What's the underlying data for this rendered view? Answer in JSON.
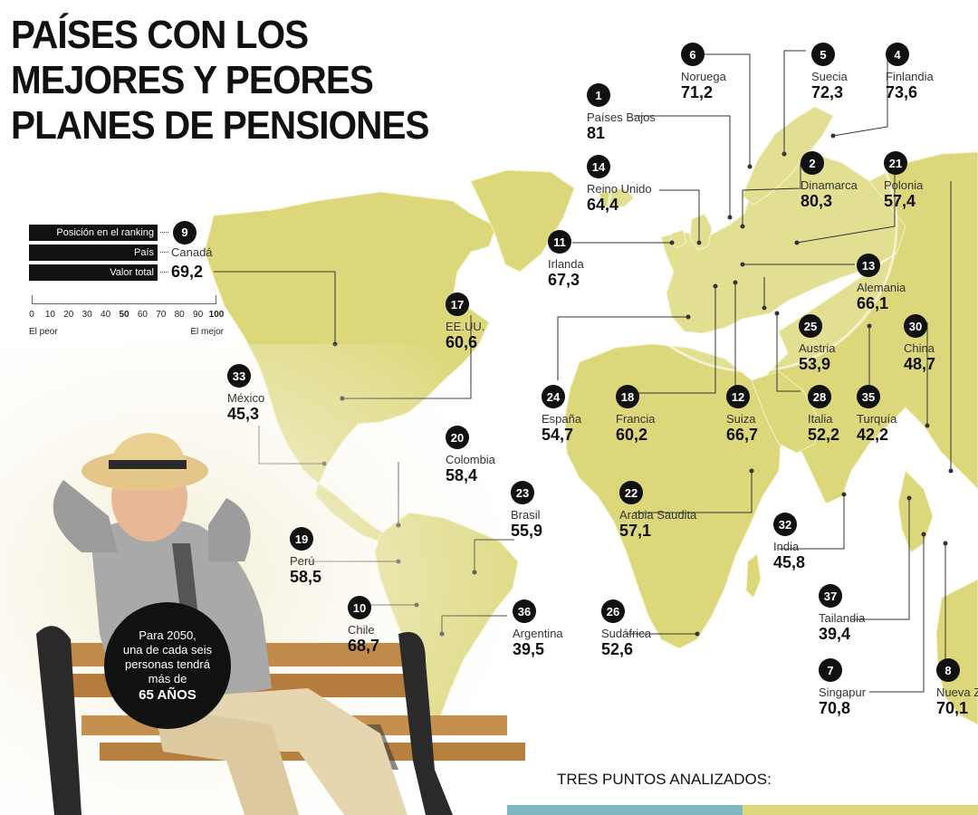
{
  "title": {
    "line1": "PAÍSES CON LOS",
    "line2": "MEJORES Y PEORES",
    "line3": "PLANES DE PENSIONES"
  },
  "legend": {
    "rank_label": "Posición en el ranking",
    "country_label": "País",
    "value_label": "Valor total",
    "example_rank": "9",
    "example_country": "Canadá",
    "example_value": "69,2",
    "scale_ticks": [
      "0",
      "10",
      "20",
      "30",
      "40",
      "50",
      "60",
      "70",
      "80",
      "90",
      "100"
    ],
    "worst_label": "El peor",
    "best_label": "El mejor"
  },
  "countries": [
    {
      "rank": "1",
      "name": "Países Bajos",
      "value": "81"
    },
    {
      "rank": "2",
      "name": "Dinamarca",
      "value": "80,3"
    },
    {
      "rank": "4",
      "name": "Finlandia",
      "value": "73,6"
    },
    {
      "rank": "5",
      "name": "Suecia",
      "value": "72,3"
    },
    {
      "rank": "6",
      "name": "Noruega",
      "value": "71,2"
    },
    {
      "rank": "7",
      "name": "Singapur",
      "value": "70,8"
    },
    {
      "rank": "8",
      "name": "Nueva Z",
      "value": "70,1"
    },
    {
      "rank": "10",
      "name": "Chile",
      "value": "68,7"
    },
    {
      "rank": "11",
      "name": "Irlanda",
      "value": "67,3"
    },
    {
      "rank": "12",
      "name": "Suiza",
      "value": "66,7"
    },
    {
      "rank": "13",
      "name": "Alemania",
      "value": "66,1"
    },
    {
      "rank": "14",
      "name": "Reino Unido",
      "value": "64,4"
    },
    {
      "rank": "17",
      "name": "EE.UU.",
      "value": "60,6"
    },
    {
      "rank": "18",
      "name": "Francia",
      "value": "60,2"
    },
    {
      "rank": "19",
      "name": "Perú",
      "value": "58,5"
    },
    {
      "rank": "20",
      "name": "Colombia",
      "value": "58,4"
    },
    {
      "rank": "21",
      "name": "Polonia",
      "value": "57,4"
    },
    {
      "rank": "22",
      "name": "Arabia Saudita",
      "value": "57,1"
    },
    {
      "rank": "23",
      "name": "Brasil",
      "value": "55,9"
    },
    {
      "rank": "24",
      "name": "España",
      "value": "54,7"
    },
    {
      "rank": "25",
      "name": "Austria",
      "value": "53,9"
    },
    {
      "rank": "26",
      "name": "Sudáfrica",
      "value": "52,6"
    },
    {
      "rank": "28",
      "name": "Italia",
      "value": "52,2"
    },
    {
      "rank": "30",
      "name": "China",
      "value": "48,7"
    },
    {
      "rank": "32",
      "name": "India",
      "value": "45,8"
    },
    {
      "rank": "33",
      "name": "México",
      "value": "45,3"
    },
    {
      "rank": "35",
      "name": "Turquía",
      "value": "42,2"
    },
    {
      "rank": "36",
      "name": "Argentina",
      "value": "39,5"
    },
    {
      "rank": "37",
      "name": "Tailandia",
      "value": "39,4"
    }
  ],
  "note": {
    "line1": "Para 2050,",
    "line2": "una de cada seis",
    "line3": "personas tendrá",
    "line4": "más de",
    "line5": "65 AÑOS"
  },
  "footer": {
    "label": "TRES PUNTOS ANALIZADOS:"
  },
  "colors": {
    "land": "#dcd77a",
    "text": "#111111",
    "badge": "#111111",
    "bar": [
      "#7fb7c0",
      "#dcd77a"
    ]
  }
}
